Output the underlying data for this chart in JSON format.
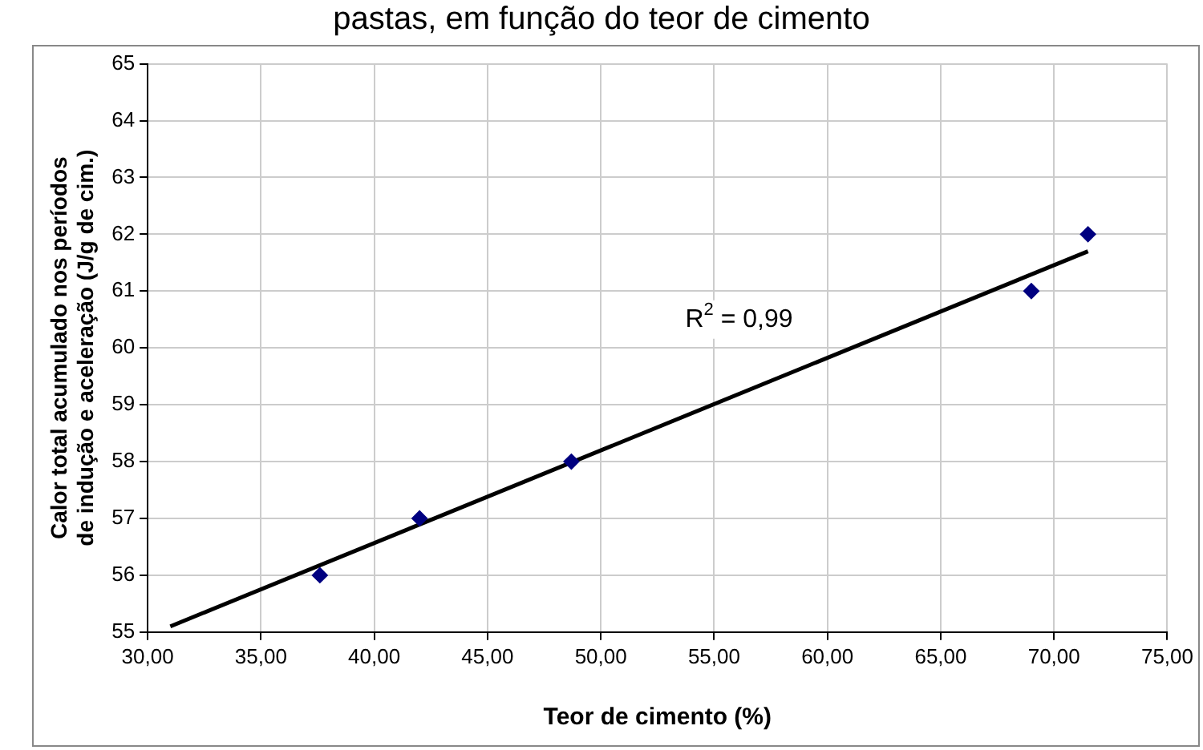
{
  "chart_data": {
    "type": "scatter",
    "title": "pastas, em função do teor de cimento",
    "xlabel": "Teor de cimento (%)",
    "ylabel": "Calor total acumulado nos períodos de indução e aceleração (J/g de cim.)",
    "x": [
      37.6,
      42.0,
      48.7,
      69.0,
      71.5
    ],
    "series": [
      {
        "type": "scatter",
        "color": "#000080",
        "values": [
          56,
          57,
          58,
          61,
          62
        ],
        "marker": "diamond"
      },
      {
        "type": "line",
        "color": "#000000",
        "x": [
          31.0,
          71.5
        ],
        "values": [
          55.1,
          61.7
        ],
        "marker": "none"
      }
    ],
    "xlim": [
      30,
      75
    ],
    "xticks": [
      {
        "value": 30,
        "label": "30,00"
      },
      {
        "value": 35,
        "label": "35,00"
      },
      {
        "value": 40,
        "label": "40,00"
      },
      {
        "value": 45,
        "label": "45,00"
      },
      {
        "value": 50,
        "label": "50,00"
      },
      {
        "value": 55,
        "label": "55,00"
      },
      {
        "value": 60,
        "label": "60,00"
      },
      {
        "value": 65,
        "label": "65,00"
      },
      {
        "value": 70,
        "label": "70,00"
      },
      {
        "value": 75,
        "label": "75,00"
      }
    ],
    "ylim": [
      55,
      65
    ],
    "yticks": [
      55,
      56,
      57,
      58,
      59,
      60,
      61,
      62,
      63,
      64,
      65
    ],
    "grid": true,
    "legend": false,
    "annotations": [
      "R$^{2}$ = 0,99"
    ]
  }
}
